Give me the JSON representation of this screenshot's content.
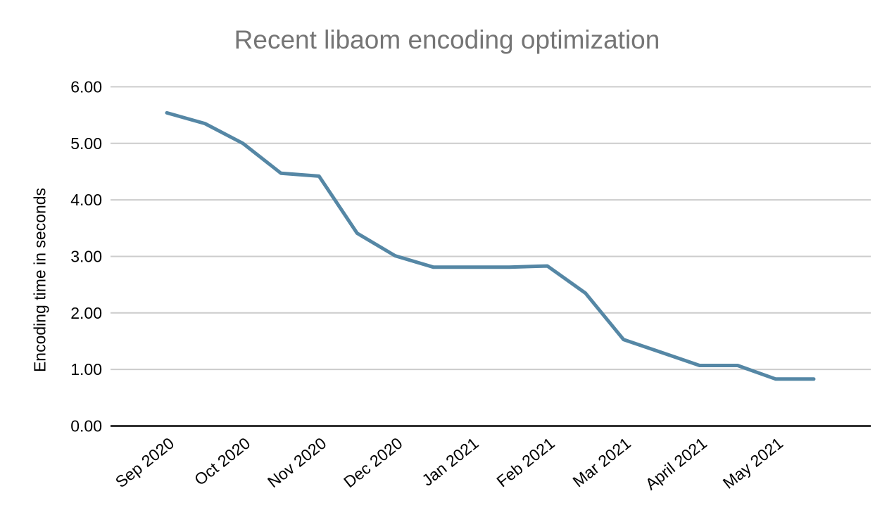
{
  "page": {
    "background": "#ffffff"
  },
  "chart_data": {
    "type": "line",
    "title": "Recent libaom encoding optimization",
    "xlabel": "",
    "ylabel": "Encoding time in seconds",
    "x_tick_labels": [
      "Sep 2020",
      "Oct 2020",
      "Nov 2020",
      "Dec 2020",
      "Jan 2021",
      "Feb 2021",
      "Mar 2021",
      "April 2021",
      "May 2021"
    ],
    "points_per_x_tick": 2,
    "values": [
      5.54,
      5.35,
      5.0,
      4.47,
      4.42,
      3.41,
      3.01,
      2.81,
      2.81,
      2.81,
      2.83,
      2.35,
      1.53,
      1.3,
      1.07,
      1.07,
      0.83,
      0.83
    ],
    "ylim": [
      0,
      6
    ],
    "y_ticks": [
      0,
      1,
      2,
      3,
      4,
      5,
      6
    ],
    "y_tick_labels": [
      "0.00",
      "1.00",
      "2.00",
      "3.00",
      "4.00",
      "5.00",
      "6.00"
    ],
    "grid": true,
    "legend": "none",
    "colors": {
      "line": "#5587a5",
      "title": "#757575",
      "grid": "#cccccc",
      "axis": "#333333",
      "tick_labels": "#000000"
    }
  }
}
